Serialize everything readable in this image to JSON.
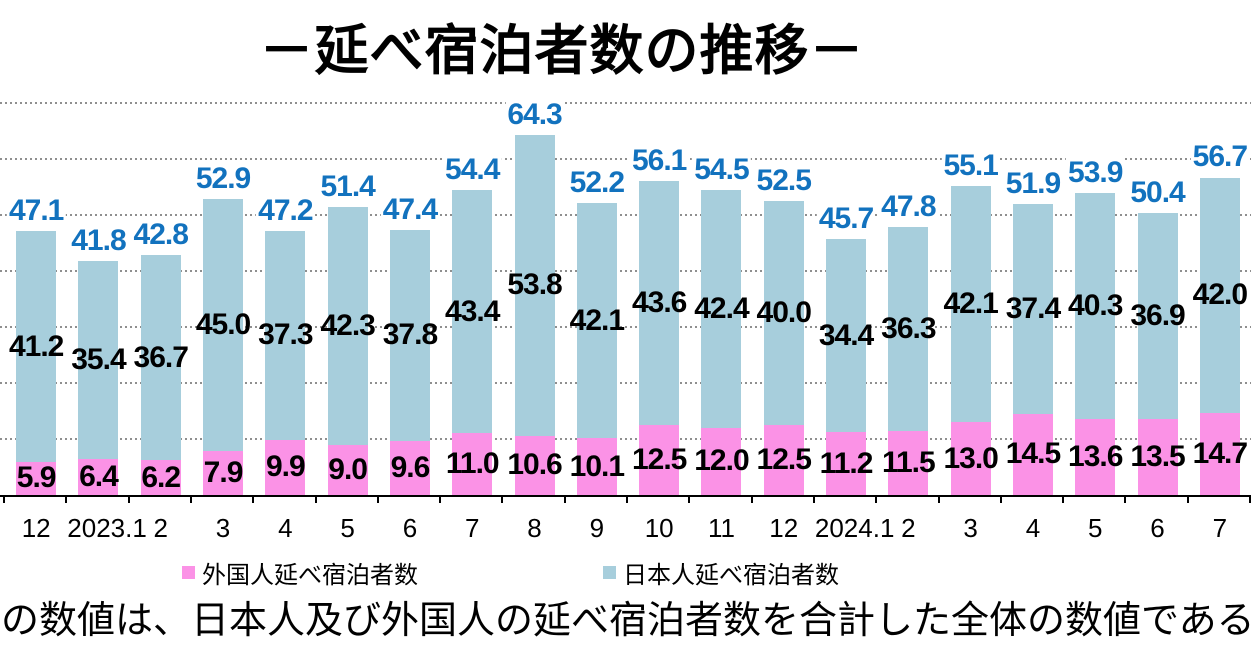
{
  "title": "－延べ宿泊者数の推移－",
  "note": "の数値は、日本人及び外国人の延べ宿泊者数を合計した全体の数値である。",
  "colors": {
    "foreign_bar": "#FB92E6",
    "japanese_bar": "#A7CEDC",
    "total_label": "#1272BE",
    "gridline": "#8F8F8F",
    "axis": "#000000"
  },
  "chart_data": {
    "type": "bar",
    "stacked": true,
    "title": "－延べ宿泊者数の推移－",
    "categories": [
      "12",
      "2023.1",
      "2",
      "3",
      "4",
      "5",
      "6",
      "7",
      "8",
      "9",
      "10",
      "11",
      "12",
      "2024.1",
      "2",
      "3",
      "4",
      "5",
      "6",
      "7"
    ],
    "series": [
      {
        "name": "外国人延べ宿泊者数",
        "color": "#FB92E6",
        "values": [
          5.9,
          6.4,
          6.2,
          7.9,
          9.9,
          9.0,
          9.6,
          11.0,
          10.6,
          10.1,
          12.5,
          12.0,
          12.5,
          11.2,
          11.5,
          13.0,
          14.5,
          13.6,
          13.5,
          14.7
        ]
      },
      {
        "name": "日本人延べ宿泊者数",
        "color": "#A7CEDC",
        "values": [
          41.2,
          35.4,
          36.7,
          45.0,
          37.3,
          42.3,
          37.8,
          43.4,
          53.8,
          42.1,
          43.6,
          42.4,
          40.0,
          34.4,
          36.3,
          42.1,
          37.4,
          40.3,
          36.9,
          42.0
        ]
      }
    ],
    "totals": [
      47.1,
      41.8,
      42.8,
      52.9,
      47.2,
      51.4,
      47.4,
      54.4,
      64.3,
      52.2,
      56.1,
      54.5,
      52.5,
      45.7,
      47.8,
      55.1,
      51.9,
      53.9,
      50.4,
      56.7
    ],
    "ylim": [
      0,
      70
    ],
    "ytick_step": 10,
    "grid": true,
    "legend_position": "bottom",
    "xlabel": "",
    "ylabel": ""
  }
}
